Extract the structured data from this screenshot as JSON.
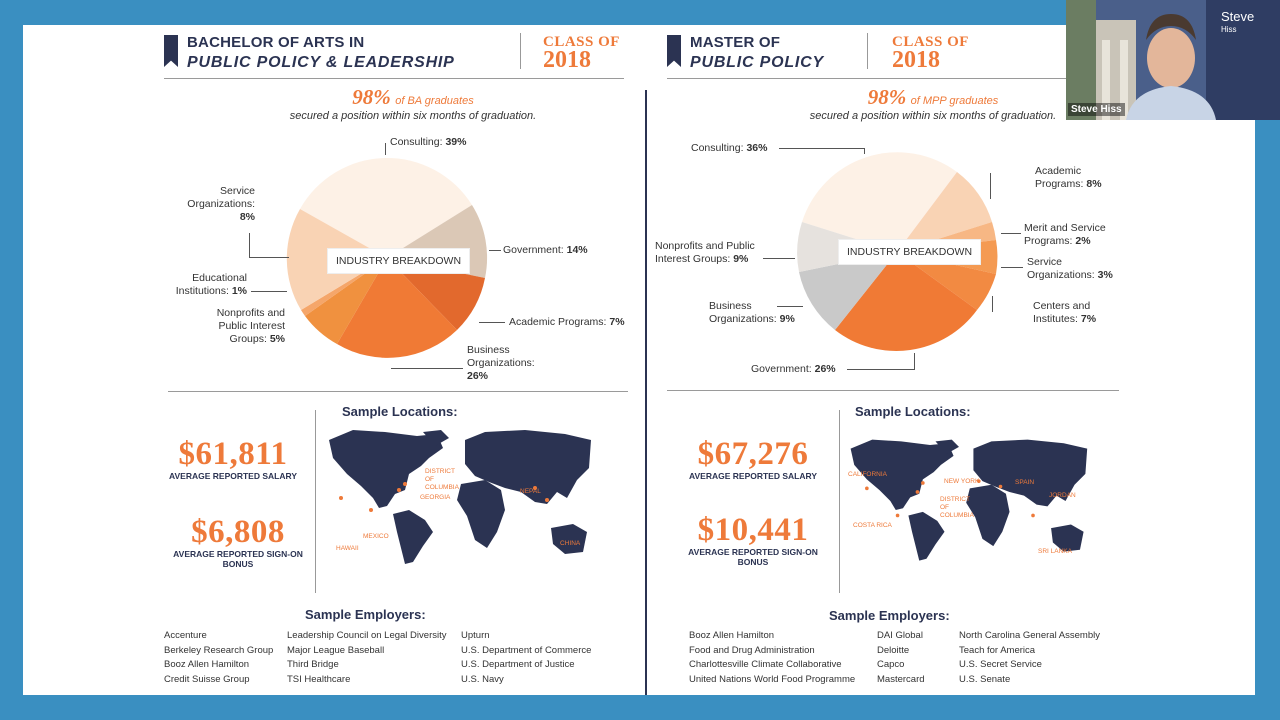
{
  "left": {
    "title_line1": "BACHELOR OF ARTS IN",
    "title_line2": "PUBLIC POLICY & LEADERSHIP",
    "class_of": "CLASS OF",
    "year": "2018",
    "stat_pct": "98%",
    "stat_label": "of BA graduates",
    "stat_sub": "secured a position within six months of graduation.",
    "industry_label": "INDUSTRY BREAKDOWN",
    "slices": [
      {
        "name": "Consulting:",
        "value": "39%"
      },
      {
        "name": "Government:",
        "value": "14%"
      },
      {
        "name": "Academic Programs:",
        "value": "7%"
      },
      {
        "name": "Business Organizations:",
        "value": "26%"
      },
      {
        "name": "Nonprofits and Public Interest Groups:",
        "value": "5%"
      },
      {
        "name": "Educational Institutions:",
        "value": "1%"
      },
      {
        "name": "Service Organizations:",
        "value": "8%"
      }
    ],
    "locations_title": "Sample Locations:",
    "salary": "$61,811",
    "salary_caption": "AVERAGE REPORTED SALARY",
    "bonus": "$6,808",
    "bonus_caption": "AVERAGE REPORTED SIGN-ON BONUS",
    "map_labels": [
      "DISTRICT OF COLUMBIA",
      "GEORGIA",
      "HAWAII",
      "MEXICO",
      "NEPAL",
      "CHINA"
    ],
    "employers_title": "Sample Employers:",
    "employers": [
      [
        "Accenture",
        "Berkeley Research Group",
        "Booz Allen Hamilton",
        "Credit Suisse Group"
      ],
      [
        "Leadership Council on Legal Diversity",
        "Major League Baseball",
        "Third Bridge",
        "TSI Healthcare"
      ],
      [
        "Upturn",
        "U.S. Department of Commerce",
        "U.S. Department of Justice",
        "U.S. Navy"
      ]
    ]
  },
  "right": {
    "title_line1": "MASTER OF",
    "title_line2": "PUBLIC POLICY",
    "class_of": "CLASS OF",
    "year": "2018",
    "stat_pct": "98%",
    "stat_label": "of MPP graduates",
    "stat_sub": "secured a position within six months of graduation.",
    "industry_label": "INDUSTRY BREAKDOWN",
    "slices": [
      {
        "name": "Consulting:",
        "value": "36%"
      },
      {
        "name": "Academic Programs:",
        "value": "8%"
      },
      {
        "name": "Merit and Service Programs:",
        "value": "2%"
      },
      {
        "name": "Service Organizations:",
        "value": "3%"
      },
      {
        "name": "Centers and Institutes:",
        "value": "7%"
      },
      {
        "name": "Government:",
        "value": "26%"
      },
      {
        "name": "Business Organizations:",
        "value": "9%"
      },
      {
        "name": "Nonprofits and Public Interest Groups:",
        "value": "9%"
      }
    ],
    "locations_title": "Sample Locations:",
    "salary": "$67,276",
    "salary_caption": "AVERAGE REPORTED SALARY",
    "bonus": "$10,441",
    "bonus_caption": "AVERAGE REPORTED SIGN-ON BONUS",
    "map_labels": [
      "CALIFORNIA",
      "NEW YORK",
      "DISTRICT OF COLUMBIA",
      "COSTA RICA",
      "SPAIN",
      "JORDAN",
      "SRI LANKA"
    ],
    "employers_title": "Sample Employers:",
    "employers": [
      [
        "Booz Allen Hamilton",
        "Food and Drug Administration",
        "Charlottesville Climate Collaborative",
        "United Nations World Food Programme"
      ],
      [
        "DAI Global",
        "Deloitte",
        "Capco",
        "Mastercard"
      ],
      [
        "North Carolina General Assembly",
        "Teach for America",
        "U.S. Secret Service",
        "U.S. Senate"
      ]
    ]
  },
  "webcam": {
    "name_first": "Steve",
    "name_last": "Hiss",
    "name_tag": "Steve Hiss"
  },
  "colors": {
    "background": "#3a8fc1",
    "navy": "#2b3352",
    "orange": "#ee7a3a"
  }
}
